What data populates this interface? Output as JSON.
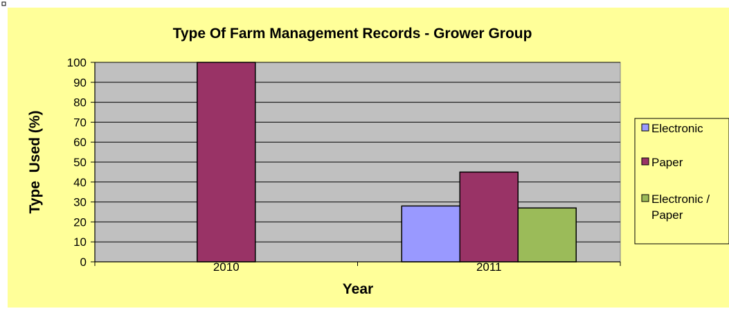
{
  "chart_data": {
    "type": "bar",
    "title": "Type Of Farm Management Records - Grower Group",
    "xlabel": "Year",
    "ylabel": "Type  Used (%)",
    "categories": [
      "2010",
      "2011"
    ],
    "series": [
      {
        "name": "Electronic",
        "values": [
          0,
          28
        ],
        "color": "#9999ff"
      },
      {
        "name": "Paper",
        "values": [
          100,
          45
        ],
        "color": "#993366"
      },
      {
        "name": "Electronic /\nPaper",
        "values": [
          0,
          27
        ],
        "color": "#9bbb59"
      }
    ],
    "ylim": [
      0,
      100
    ],
    "yticks": [
      0,
      10,
      20,
      30,
      40,
      50,
      60,
      70,
      80,
      90,
      100
    ],
    "grid": true,
    "legend": "right",
    "colors": {
      "background": "#ffff99",
      "plot_area": "#c0c0c0",
      "gridline": "#000000"
    }
  }
}
